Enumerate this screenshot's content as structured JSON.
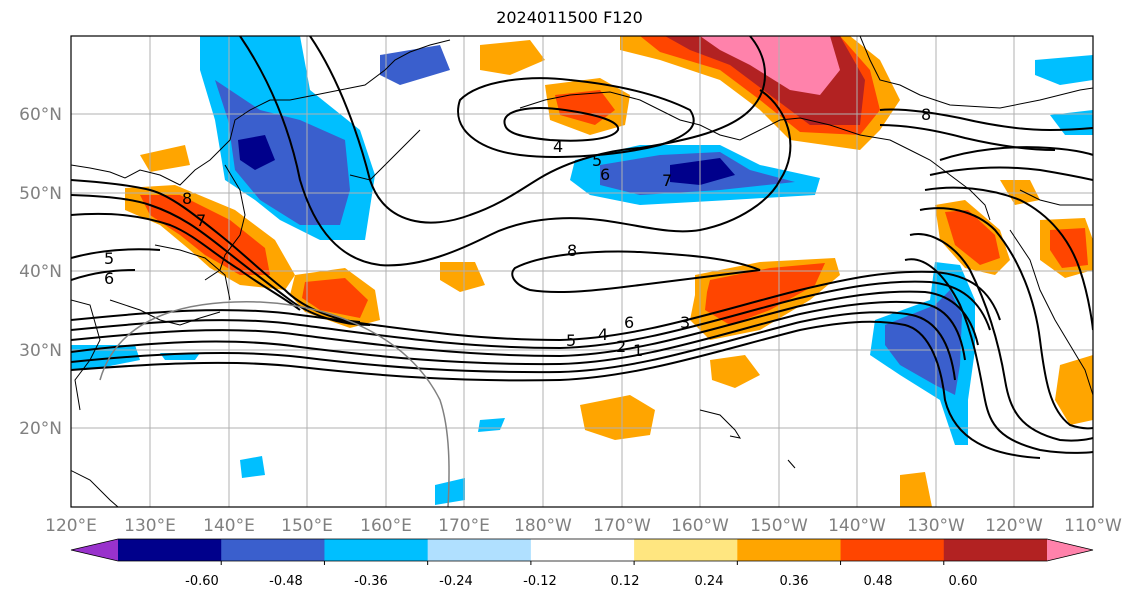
{
  "title": "2024011500 F120",
  "map": {
    "lon_range_deg_east": [
      120,
      250
    ],
    "lat_range_deg": [
      10,
      70
    ],
    "gridlines": true,
    "lat_labels": [
      "20°N",
      "30°N",
      "40°N",
      "50°N",
      "60°N"
    ],
    "lon_labels": [
      "120°E",
      "130°E",
      "140°E",
      "150°E",
      "160°E",
      "170°E",
      "180°W",
      "170°W",
      "160°W",
      "150°W",
      "140°W",
      "130°W",
      "120°W",
      "110°W"
    ]
  },
  "contours": {
    "color": "#000000",
    "labels": [
      "8",
      "7",
      "5",
      "6",
      "4",
      "5",
      "6",
      "7",
      "8",
      "5",
      "4",
      "6",
      "2",
      "1",
      "3",
      "8"
    ]
  },
  "colorbar": {
    "extend": "both",
    "tick_labels": [
      "-0.60",
      "-0.48",
      "-0.36",
      "-0.24",
      "-0.12",
      "0.12",
      "0.24",
      "0.36",
      "0.48",
      "0.60"
    ],
    "colors": [
      "#9932cc",
      "#00008b",
      "#3a5fcd",
      "#00bfff",
      "#b0e0ff",
      "#ffffff",
      "#ffe680",
      "#ffa500",
      "#ff4500",
      "#b22222",
      "#ff82ab"
    ]
  }
}
